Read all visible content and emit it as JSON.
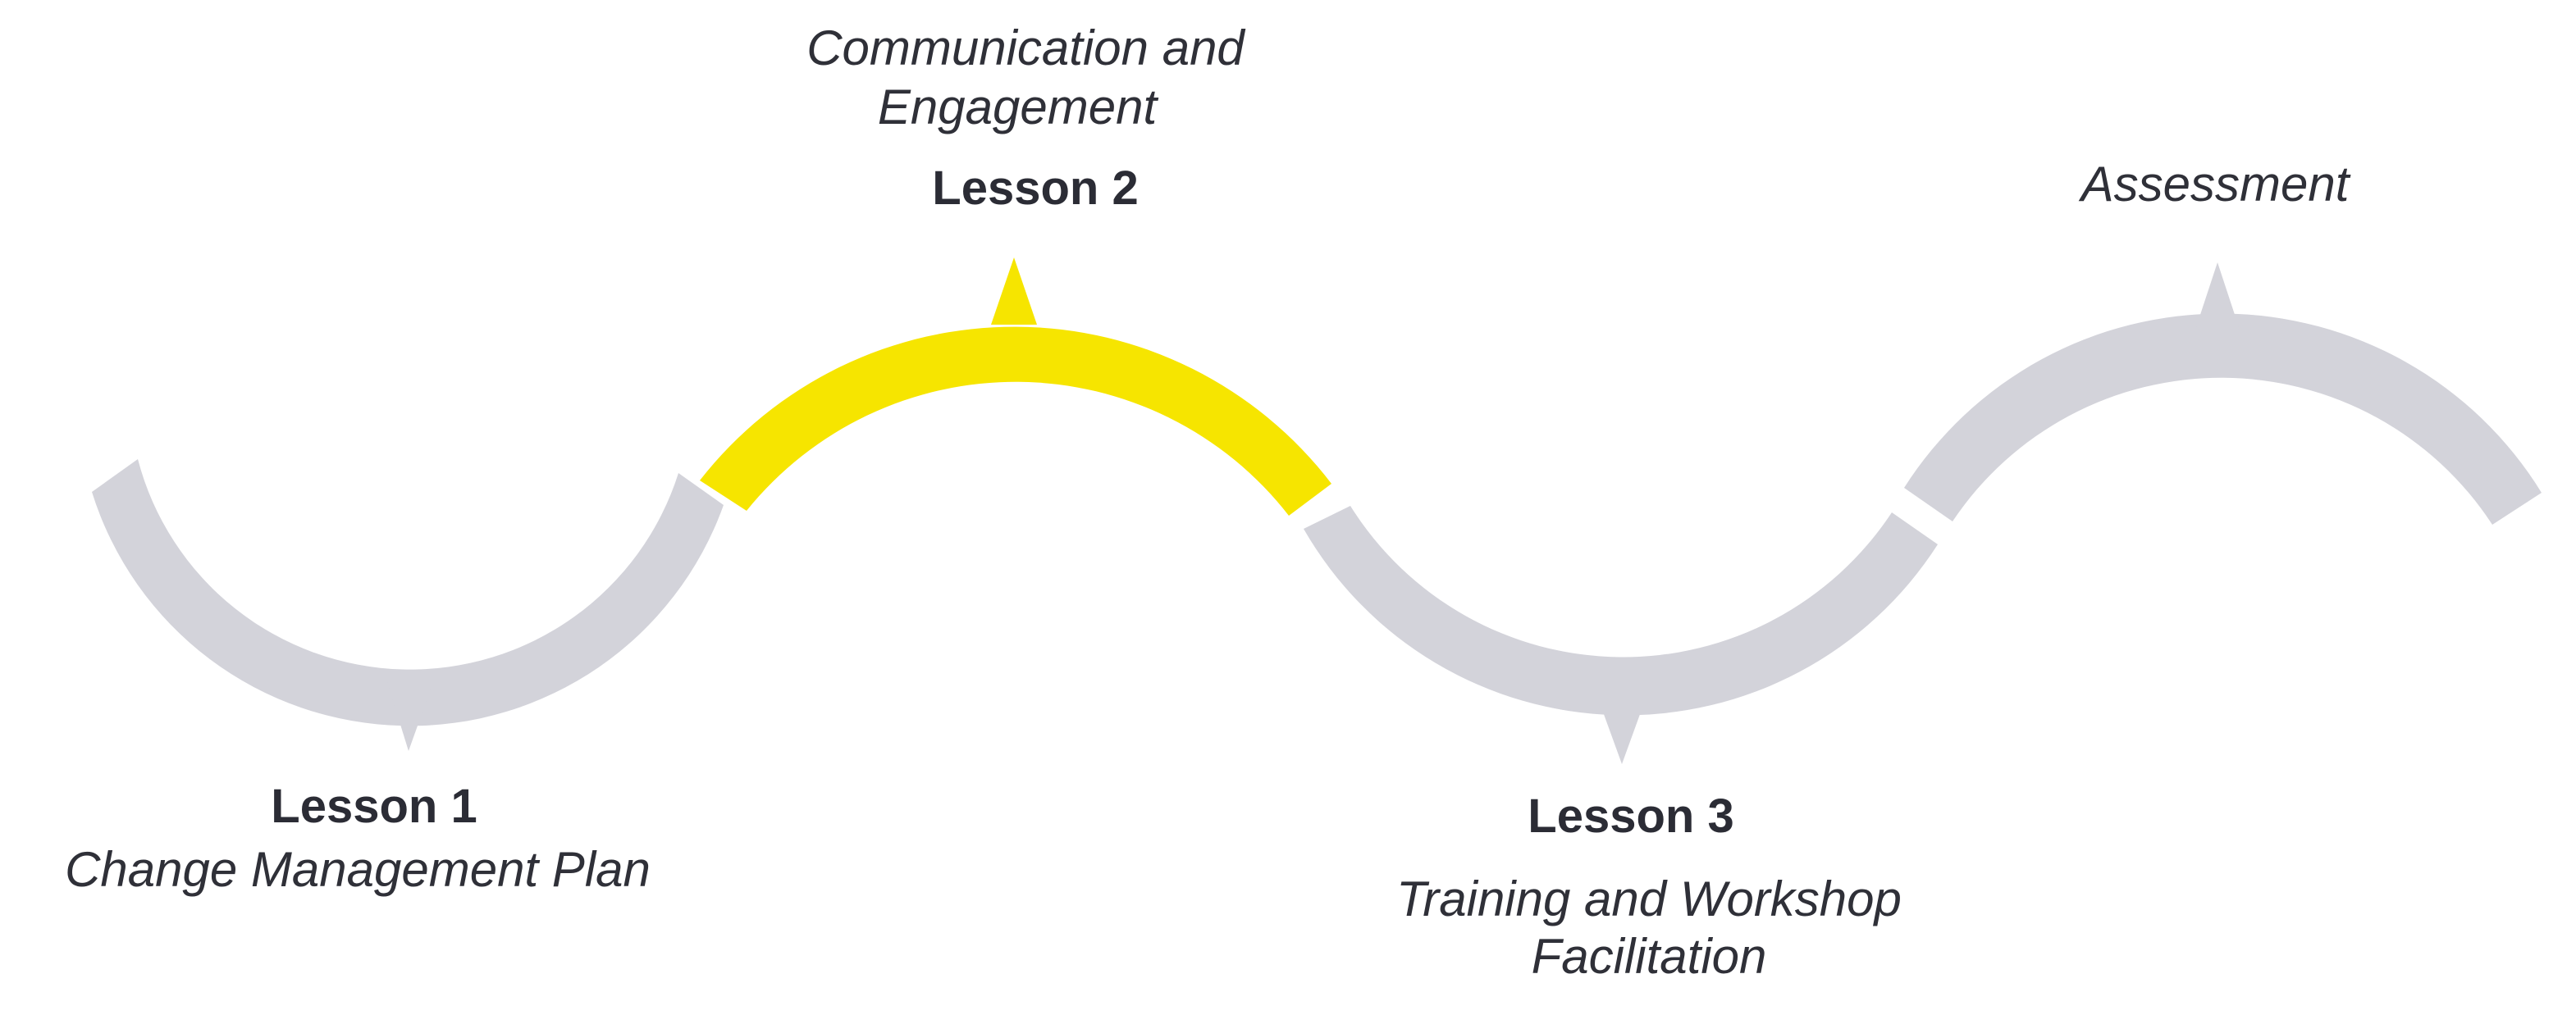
{
  "colors": {
    "background": "#ffffff",
    "inactive_segment": "#d3d3da",
    "active_segment": "#f6e500",
    "text": "#2e2f38"
  },
  "steps": [
    {
      "title": "Lesson 1",
      "subtitle": "Change Management Plan",
      "active": false
    },
    {
      "title": "Lesson 2",
      "subtitle": "Communication and Engagement",
      "active": true
    },
    {
      "title": "Lesson 3",
      "subtitle": "Training and Workshop Facilitation",
      "active": false
    },
    {
      "title": "",
      "subtitle": "Assessment",
      "active": false
    }
  ]
}
